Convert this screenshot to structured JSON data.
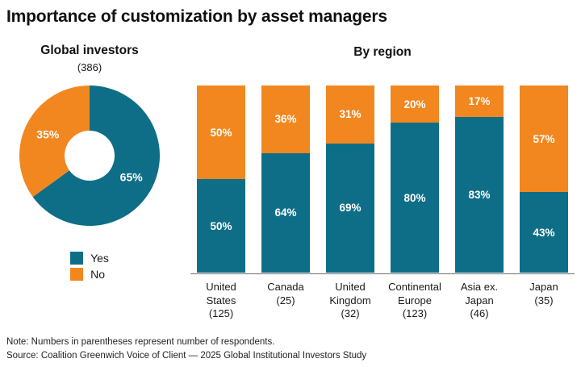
{
  "title": "Importance of customization by asset managers",
  "colors": {
    "yes": "#0f6e87",
    "no": "#f2871f",
    "axis": "#6f6f6f",
    "text": "#1a1a1a"
  },
  "chart_data": [
    {
      "type": "pie",
      "donut": true,
      "title": "Global investors",
      "respondents_label": "(386)",
      "labels": [
        "Yes",
        "No"
      ],
      "values": [
        65,
        35
      ],
      "value_labels": [
        "65%",
        "35%"
      ],
      "colors": [
        "#0f6e87",
        "#f2871f"
      ],
      "legend_position": "below"
    },
    {
      "type": "bar",
      "stacking": "percent",
      "title": "By region",
      "categories": [
        "United States",
        "Canada",
        "United Kingdom",
        "Continental Europe",
        "Asia ex. Japan",
        "Japan"
      ],
      "category_labels": [
        "United\nStates\n(125)",
        "Canada\n(25)",
        "United\nKingdom\n(32)",
        "Continental\nEurope\n(123)",
        "Asia ex.\nJapan\n(46)",
        "Japan\n(35)"
      ],
      "series": [
        {
          "name": "Yes",
          "color": "#0f6e87",
          "values": [
            50,
            64,
            69,
            80,
            83,
            43
          ]
        },
        {
          "name": "No",
          "color": "#f2871f",
          "values": [
            50,
            36,
            31,
            20,
            17,
            57
          ]
        }
      ],
      "value_label_format": "percent",
      "ylim": [
        0,
        100
      ],
      "grid": false
    }
  ],
  "legend": {
    "items": [
      {
        "label": "Yes",
        "color": "#0f6e87"
      },
      {
        "label": "No",
        "color": "#f2871f"
      }
    ]
  },
  "notes": {
    "note": "Note: Numbers in parentheses represent number of respondents.",
    "source": "Source: Coalition Greenwich Voice of Client — 2025 Global Institutional Investors Study"
  }
}
